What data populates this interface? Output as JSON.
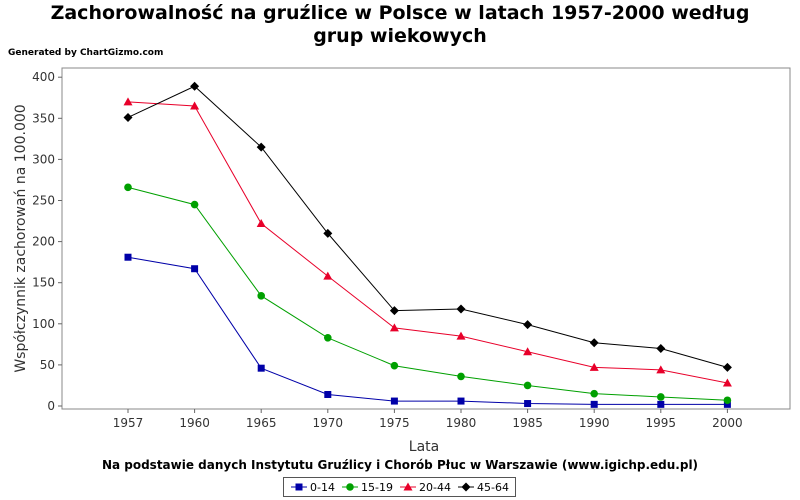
{
  "title_line1": "Zachorowalność na gruźlice w Polsce w latach 1957-2000 według",
  "title_line2": "grup wiekowych",
  "generated_by": "Generated by ChartGizmo.com",
  "source_note": "Na podstawie danych Instytutu Gruźlicy i Chorób Płuc w Warszawie (www.igichp.edu.pl)",
  "chart_data": {
    "type": "line",
    "title": "Zachorowalność na gruźlice w Polsce w latach 1957-2000 według grup wiekowych",
    "xlabel": "Lata",
    "ylabel": "Współczynnik zachorowań na 100.000",
    "categories": [
      "1957",
      "1960",
      "1965",
      "1970",
      "1975",
      "1980",
      "1985",
      "1990",
      "1995",
      "2000"
    ],
    "ylim": [
      0,
      410
    ],
    "yticks": [
      0,
      50,
      100,
      150,
      200,
      250,
      300,
      350,
      400
    ],
    "grid": false,
    "legend": "bottom",
    "series": [
      {
        "name": "0-14",
        "color": "#0000a8",
        "marker": "square",
        "values": [
          181,
          167,
          46,
          14,
          6,
          6,
          3,
          2,
          2,
          2
        ]
      },
      {
        "name": "15-19",
        "color": "#00a000",
        "marker": "circle",
        "values": [
          266,
          245,
          134,
          83,
          49,
          36,
          25,
          15,
          11,
          7
        ]
      },
      {
        "name": "20-44",
        "color": "#e8002a",
        "marker": "triangle",
        "values": [
          370,
          365,
          222,
          158,
          95,
          85,
          66,
          47,
          44,
          28
        ]
      },
      {
        "name": "45-64",
        "color": "#000000",
        "marker": "diamond",
        "values": [
          351,
          389,
          315,
          210,
          116,
          118,
          99,
          77,
          70,
          47
        ]
      }
    ]
  }
}
